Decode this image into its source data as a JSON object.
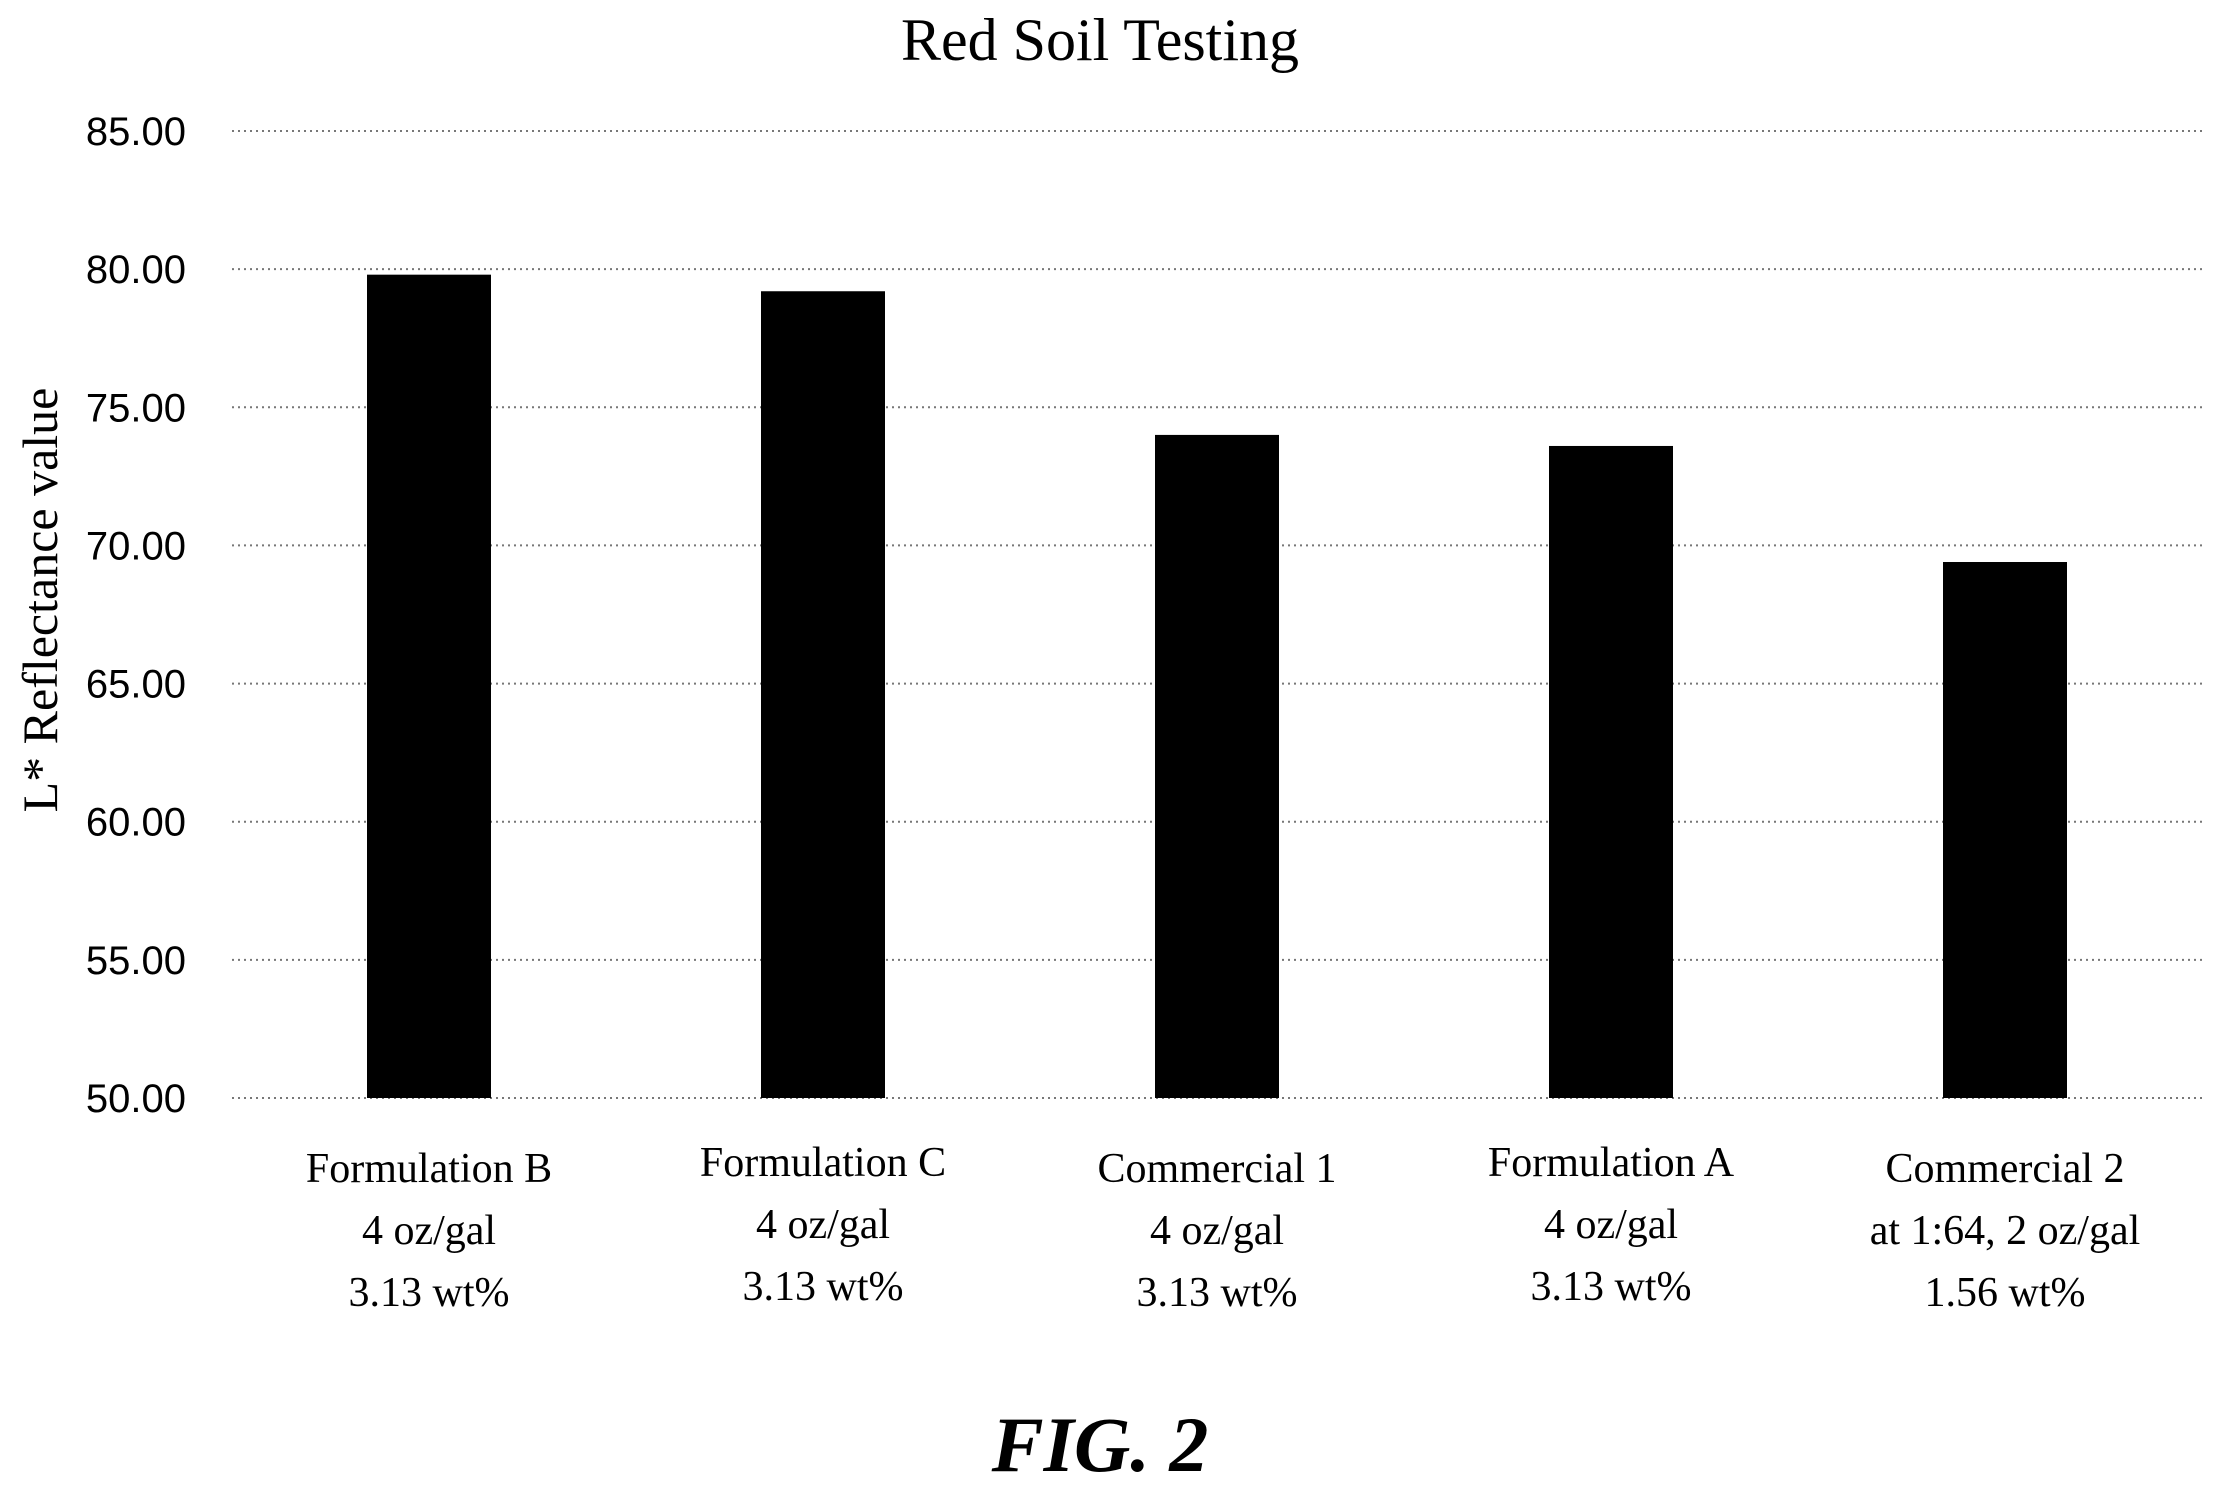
{
  "chart_data": {
    "type": "bar",
    "title": "Red Soil Testing",
    "xlabel": "",
    "ylabel": "L* Reflectance value",
    "ylim": [
      50,
      85
    ],
    "yticks": [
      "50.00",
      "55.00",
      "60.00",
      "65.00",
      "70.00",
      "75.00",
      "80.00",
      "85.00"
    ],
    "grid": true,
    "categories": [
      [
        "Formulation B",
        "4 oz/gal",
        "3.13 wt%"
      ],
      [
        "Formulation C",
        "4 oz/gal",
        "3.13 wt%"
      ],
      [
        "Commercial 1",
        "4 oz/gal",
        "3.13 wt%"
      ],
      [
        "Formulation A",
        "4 oz/gal",
        "3.13 wt%"
      ],
      [
        "Commercial 2",
        "at 1:64, 2 oz/gal",
        "1.56 wt%"
      ]
    ],
    "values": [
      79.8,
      79.2,
      74.0,
      73.6,
      69.4
    ],
    "bar_color": "#000000"
  },
  "figure_caption": "FIG. 2"
}
